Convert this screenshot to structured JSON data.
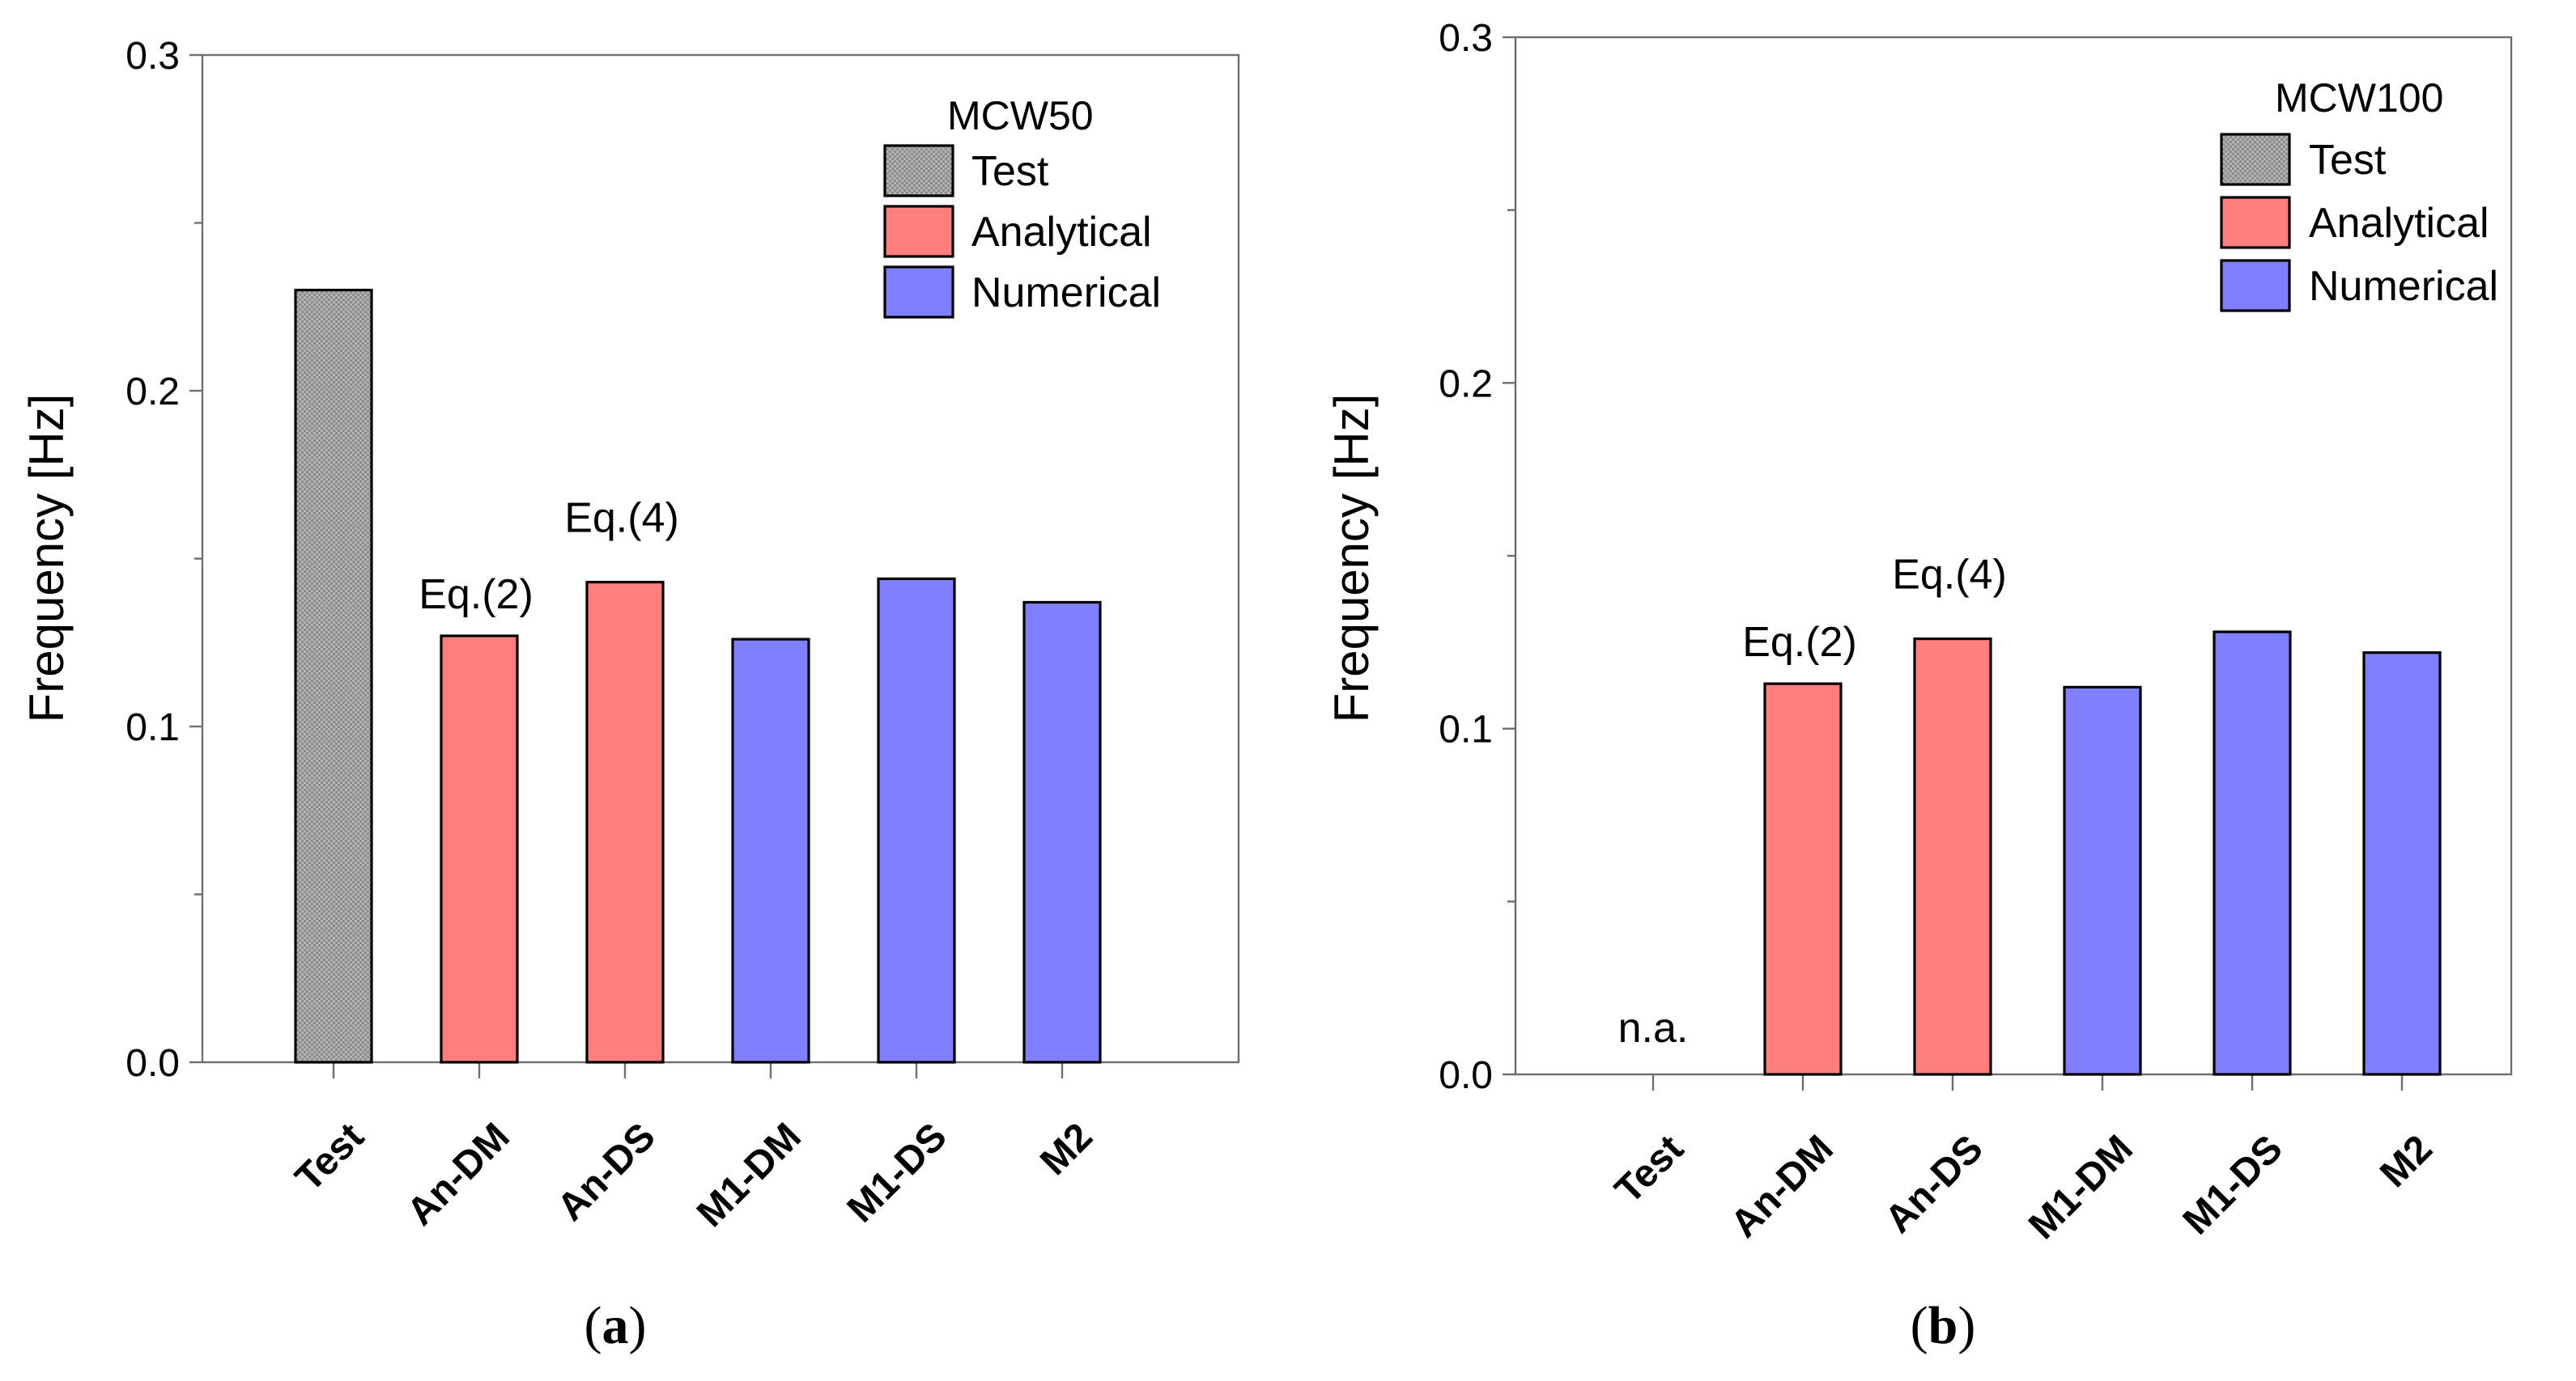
{
  "colors": {
    "test": "#a6a6a6",
    "analytical": "#ff7f7f",
    "numerical": "#7f7fff"
  },
  "chart_data": [
    {
      "type": "bar",
      "panel_label": "a",
      "legend_title": "MCW50",
      "legend": [
        {
          "key": "test",
          "label": "Test"
        },
        {
          "key": "analytical",
          "label": "Analytical"
        },
        {
          "key": "numerical",
          "label": "Numerical"
        }
      ],
      "categories": [
        "Test",
        "An-DM",
        "An-DS",
        "M1-DM",
        "M1-DS",
        "M2"
      ],
      "values": [
        0.23,
        0.127,
        0.143,
        0.126,
        0.144,
        0.137
      ],
      "groups": [
        "test",
        "analytical",
        "analytical",
        "numerical",
        "numerical",
        "numerical"
      ],
      "ylabel": "Frequency  [Hz]",
      "ylim": [
        0,
        0.3
      ],
      "yticks": [
        "0.0",
        "0.1",
        "0.2",
        "0.3"
      ],
      "annotations": [
        {
          "category": "An-DM",
          "text": "Eq.(2)"
        },
        {
          "category": "An-DS",
          "text": "Eq.(4)"
        }
      ]
    },
    {
      "type": "bar",
      "panel_label": "b",
      "legend_title": "MCW100",
      "legend": [
        {
          "key": "test",
          "label": "Test"
        },
        {
          "key": "analytical",
          "label": "Analytical"
        },
        {
          "key": "numerical",
          "label": "Numerical"
        }
      ],
      "categories": [
        "Test",
        "An-DM",
        "An-DS",
        "M1-DM",
        "M1-DS",
        "M2"
      ],
      "values": [
        null,
        0.113,
        0.126,
        0.112,
        0.128,
        0.122
      ],
      "groups": [
        "test",
        "analytical",
        "analytical",
        "numerical",
        "numerical",
        "numerical"
      ],
      "ylabel": "Frequency  [Hz]",
      "ylim": [
        0,
        0.3
      ],
      "yticks": [
        "0.0",
        "0.1",
        "0.2",
        "0.3"
      ],
      "missing_label": "n.a.",
      "annotations": [
        {
          "category": "An-DM",
          "text": "Eq.(2)"
        },
        {
          "category": "An-DS",
          "text": "Eq.(4)"
        }
      ]
    }
  ]
}
